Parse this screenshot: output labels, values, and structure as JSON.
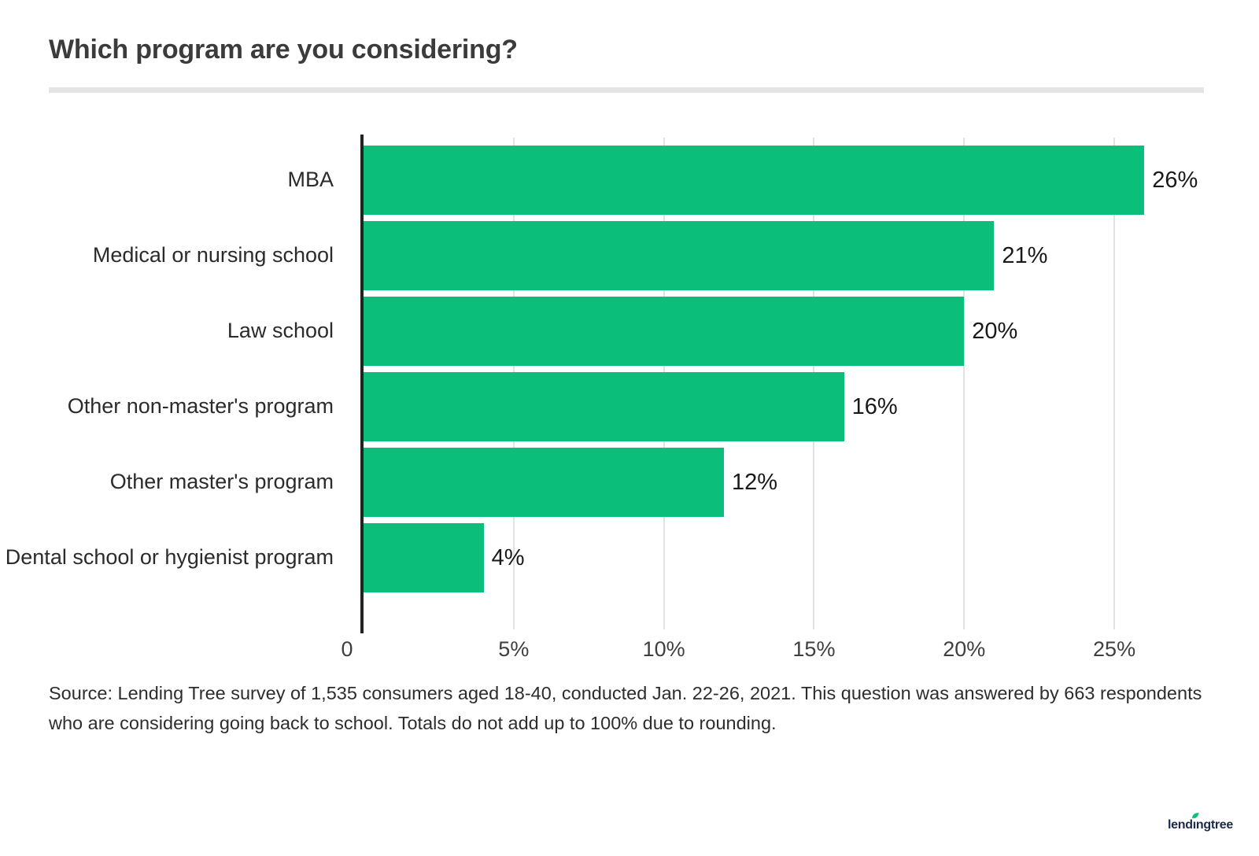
{
  "header": {
    "title": "Which program are you considering?"
  },
  "chart_data": {
    "type": "bar",
    "orientation": "horizontal",
    "title": "Which program are you considering?",
    "categories": [
      "MBA",
      "Medical or nursing school",
      "Law school",
      "Other non-master's program",
      "Other master's program",
      "Dental school or hygienist program"
    ],
    "values": [
      26,
      21,
      20,
      16,
      12,
      4
    ],
    "value_labels": [
      "26%",
      "21%",
      "20%",
      "16%",
      "12%",
      "4%"
    ],
    "x_ticks": [
      {
        "value": 0,
        "label": "0"
      },
      {
        "value": 5,
        "label": "5%"
      },
      {
        "value": 10,
        "label": "10%"
      },
      {
        "value": 15,
        "label": "15%"
      },
      {
        "value": 20,
        "label": "20%"
      },
      {
        "value": 25,
        "label": "25%"
      }
    ],
    "xlim": [
      0,
      28.3
    ],
    "grid": true,
    "legend": false,
    "bar_color": "#0bbf7b",
    "grid_color": "#e2e2e2",
    "axis_color": "#232323",
    "category_label_color": "#2b2b2b",
    "value_label_color": "#191919",
    "tick_label_color": "#3f3f3f"
  },
  "source": {
    "text": "Source: Lending Tree survey of 1,535 consumers aged 18-40, conducted Jan. 22-26, 2021. This question was answered by 663 respondents who are considering going back to school. Totals do not add up to 100% due to rounding."
  },
  "footer": {
    "logo": {
      "part_left": "lend",
      "part_i": "ı",
      "part_right": "ngtree",
      "text_color": "#1b2b49",
      "leaf_color": "#0bbf7b"
    }
  }
}
